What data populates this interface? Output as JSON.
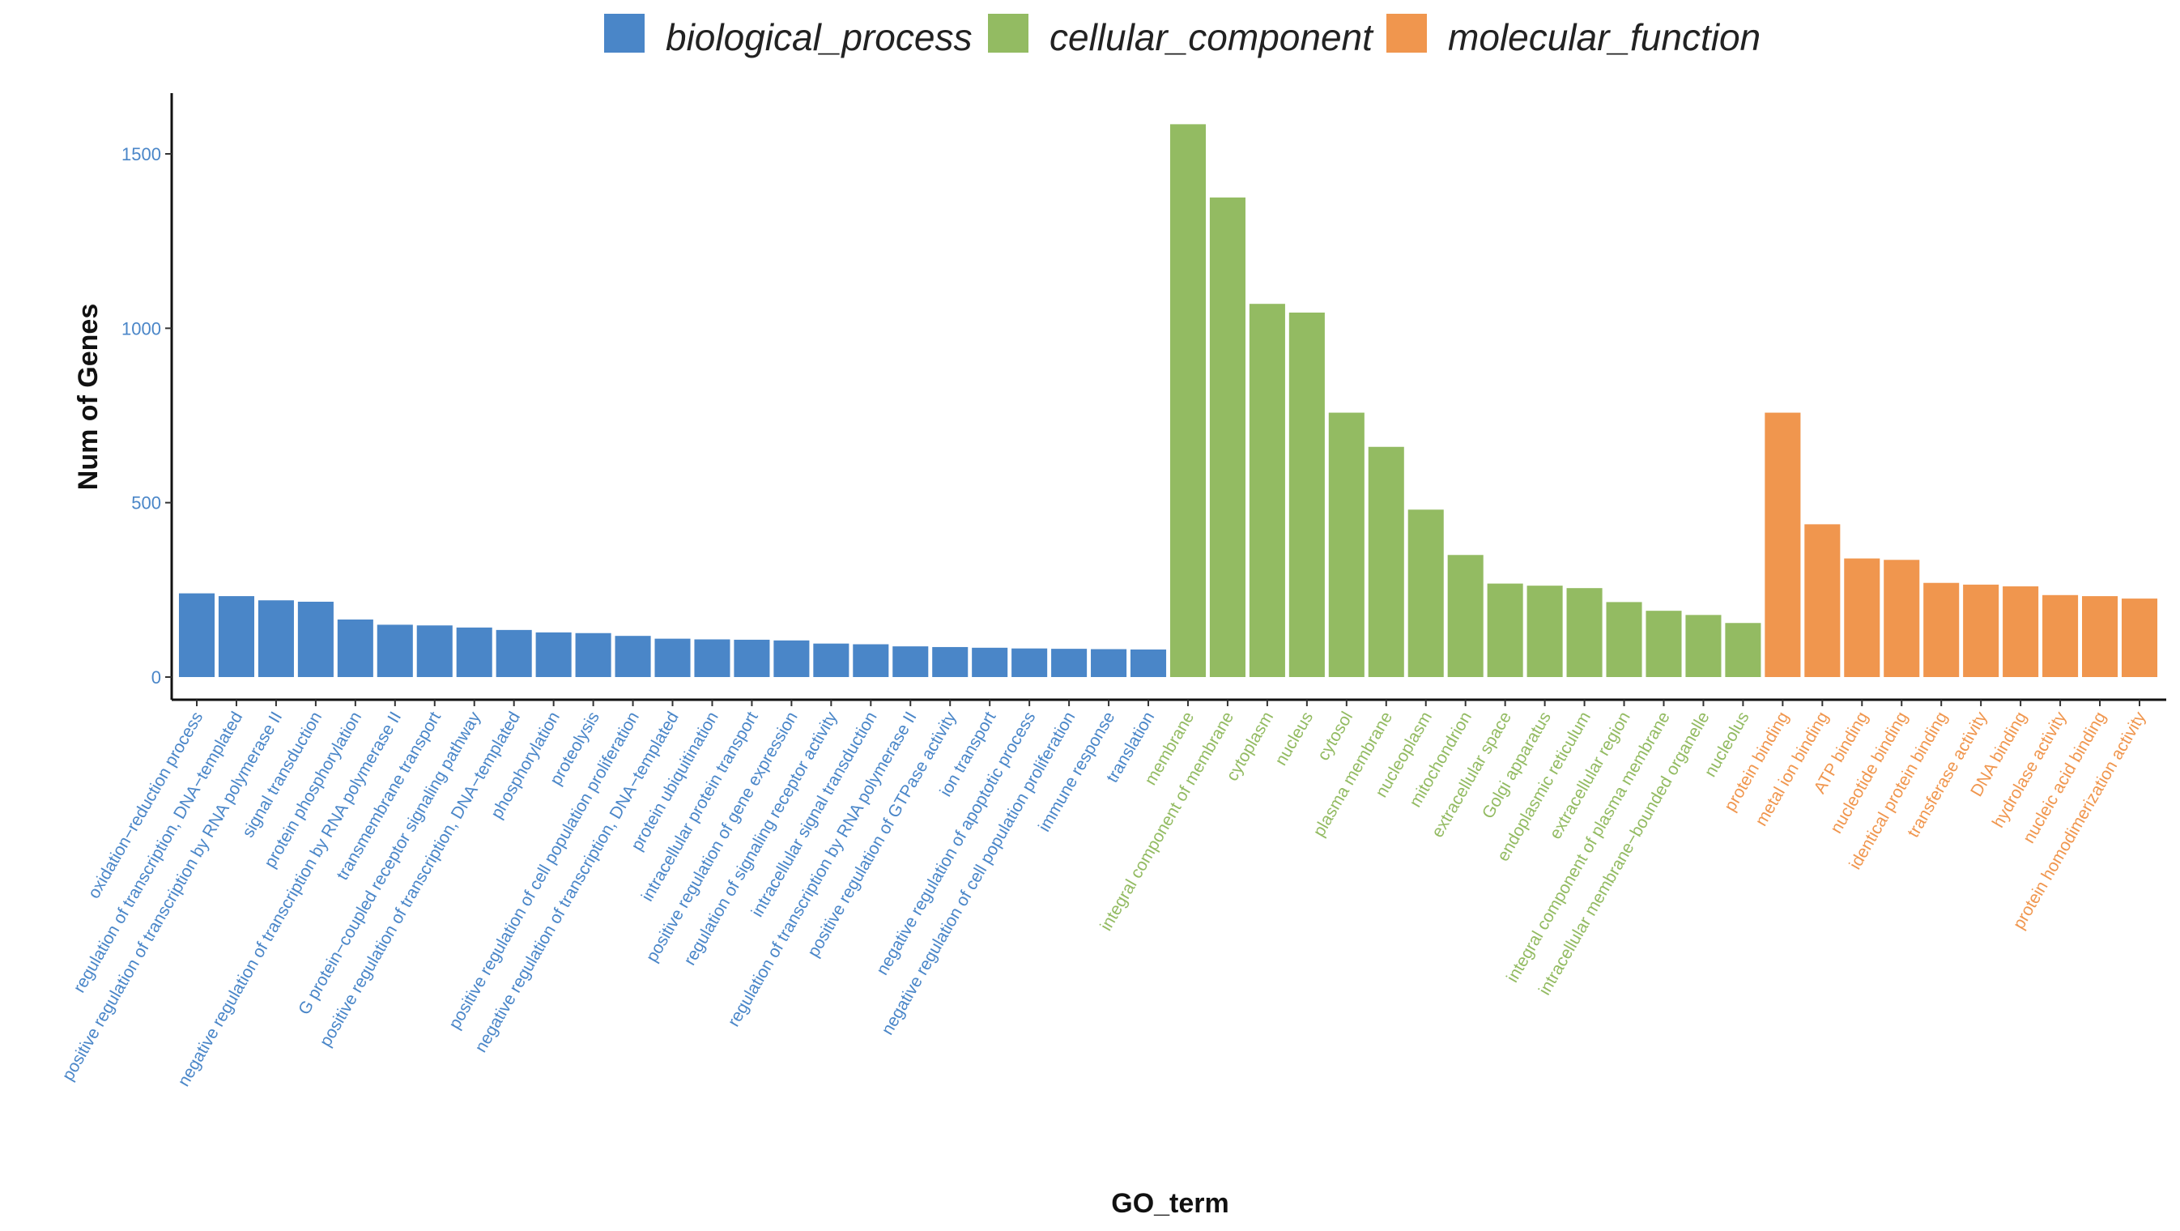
{
  "chart_data": {
    "type": "bar",
    "title": "",
    "xlabel": "GO_term",
    "ylabel": "Num of Genes",
    "ylim": [
      0,
      1650
    ],
    "yticks": [
      0,
      500,
      1000,
      1500
    ],
    "grid": false,
    "legend_position": "top",
    "colors": {
      "biological_process": "#4a86c8",
      "cellular_component": "#93bb62",
      "molecular_function": "#f0964e"
    },
    "series": [
      {
        "name": "biological_process",
        "categories": [
          "oxidation−reduction process",
          "regulation of transcription, DNA−templated",
          "positive regulation of transcription by RNA polymerase II",
          "signal transduction",
          "protein phosphorylation",
          "negative regulation of transcription by RNA polymerase II",
          "transmembrane transport",
          "G protein−coupled receptor signaling pathway",
          "positive regulation of transcription, DNA−templated",
          "phosphorylation",
          "proteolysis",
          "positive regulation of cell population proliferation",
          "negative regulation of transcription, DNA−templated",
          "protein ubiquitination",
          "intracellular protein transport",
          "positive regulation of gene expression",
          "regulation of signaling receptor activity",
          "intracellular signal transduction",
          "regulation of transcription by RNA polymerase II",
          "positive regulation of GTPase activity",
          "ion transport",
          "negative regulation of apoptotic process",
          "negative regulation of cell population proliferation",
          "immune response",
          "translation"
        ],
        "values": [
          240,
          232,
          220,
          216,
          165,
          150,
          148,
          142,
          135,
          128,
          126,
          118,
          110,
          108,
          107,
          105,
          96,
          94,
          88,
          86,
          84,
          82,
          81,
          80,
          79
        ]
      },
      {
        "name": "cellular_component",
        "categories": [
          "membrane",
          "integral component of membrane",
          "cytoplasm",
          "nucleus",
          "cytosol",
          "plasma membrane",
          "nucleoplasm",
          "mitochondrion",
          "extracellular space",
          "Golgi apparatus",
          "endoplasmic reticulum",
          "extracellular region",
          "integral component of plasma membrane",
          "intracellular membrane−bounded organelle",
          "nucleolus"
        ],
        "values": [
          1585,
          1375,
          1070,
          1045,
          758,
          660,
          480,
          350,
          268,
          262,
          255,
          215,
          190,
          178,
          155
        ]
      },
      {
        "name": "molecular_function",
        "categories": [
          "protein binding",
          "metal ion binding",
          "ATP binding",
          "nucleotide binding",
          "identical protein binding",
          "transferase activity",
          "DNA binding",
          "hydrolase activity",
          "nucleic acid binding",
          "protein homodimerization activity"
        ],
        "values": [
          758,
          438,
          340,
          336,
          270,
          265,
          260,
          235,
          232,
          225
        ]
      }
    ]
  }
}
